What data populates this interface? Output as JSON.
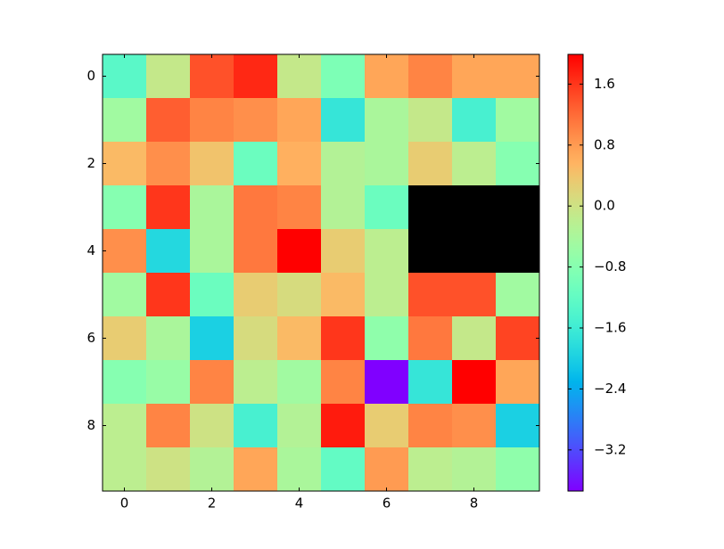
{
  "chart_data": {
    "type": "heatmap",
    "colormap": "rainbow",
    "bad_color": "#000000",
    "clim": [
      -3.74,
      1.99
    ],
    "xlim": [
      -0.5,
      9.5
    ],
    "ylim": [
      9.5,
      -0.5
    ],
    "xticks": [
      0,
      2,
      4,
      6,
      8
    ],
    "yticks": [
      0,
      2,
      4,
      6,
      8
    ],
    "colorbar_ticks": [
      {
        "value": -3.2,
        "label": "−3.2"
      },
      {
        "value": -2.4,
        "label": "−2.4"
      },
      {
        "value": -1.6,
        "label": "−1.6"
      },
      {
        "value": -0.8,
        "label": "−0.8"
      },
      {
        "value": 0,
        "label": "0.0"
      },
      0.8,
      1.6
    ],
    "values": [
      [
        -1.3,
        -0.1,
        1.4,
        1.7,
        -0.1,
        -0.9,
        0.7,
        1.0,
        0.7,
        0.7
      ],
      [
        -0.5,
        1.3,
        1.0,
        0.9,
        0.7,
        -1.7,
        -0.4,
        -0.1,
        -1.5,
        -0.5
      ],
      [
        0.5,
        0.9,
        0.4,
        -1.1,
        0.6,
        -0.3,
        -0.4,
        0.3,
        -0.2,
        -0.8
      ],
      [
        -0.8,
        1.6,
        -0.4,
        1.1,
        1.0,
        -0.3,
        -1.1,
        null,
        null,
        null
      ],
      [
        0.9,
        -1.9,
        -0.4,
        1.1,
        1.99,
        0.3,
        -0.2,
        null,
        null,
        null
      ],
      [
        -0.5,
        1.6,
        -1.1,
        0.3,
        0.1,
        0.5,
        -0.2,
        1.4,
        1.4,
        -0.5
      ],
      [
        0.3,
        -0.4,
        -2.0,
        0.1,
        0.5,
        1.6,
        -0.7,
        1.1,
        -0.1,
        1.5
      ],
      [
        -0.8,
        -0.6,
        1.0,
        -0.2,
        -0.5,
        1.0,
        -3.74,
        -1.7,
        1.99,
        0.7
      ],
      [
        -0.2,
        1.0,
        0.0,
        -1.5,
        -0.3,
        1.8,
        0.3,
        1.0,
        0.9,
        -2.0
      ],
      [
        -0.2,
        0.0,
        -0.3,
        0.7,
        -0.4,
        -1.2,
        0.8,
        -0.2,
        -0.3,
        -0.7
      ]
    ]
  }
}
